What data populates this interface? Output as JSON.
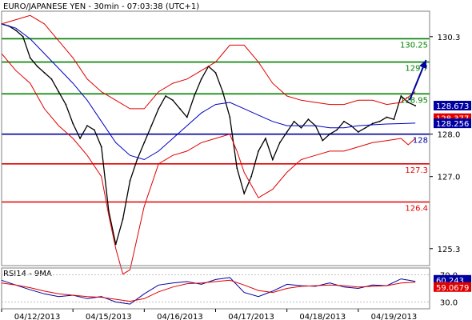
{
  "chart_data": [
    {
      "type": "line",
      "title": "EURO/JAPANESE YEN - 30min - 07:03:38 (UTC+1)",
      "y_ticks": [
        125.3,
        127.0,
        128.0,
        130.3
      ],
      "y_tick_labels": [
        "125.3",
        "127.0",
        "128.0",
        "130.3"
      ],
      "ylim": [
        124.9,
        130.9
      ],
      "x_ticks": [
        {
          "pos": 0.5,
          "label": "04/12/2013"
        },
        {
          "pos": 1.5,
          "label": "04/15/2013"
        },
        {
          "pos": 2.5,
          "label": "04/16/2013"
        },
        {
          "pos": 3.5,
          "label": "04/17/2013"
        },
        {
          "pos": 4.5,
          "label": "04/18/2013"
        },
        {
          "pos": 5.5,
          "label": "04/19/2013"
        }
      ],
      "xlim": [
        0.0,
        6.0
      ],
      "horizontal_levels": [
        {
          "value": 130.25,
          "label": "130.25",
          "color": "#008000"
        },
        {
          "value": 129.7,
          "label": "129.7",
          "color": "#008000"
        },
        {
          "value": 128.95,
          "label": "128.95",
          "color": "#008000"
        },
        {
          "value": 128.0,
          "label": "128",
          "color": "#0000a0"
        },
        {
          "value": 127.3,
          "label": "127.3",
          "color": "#e00000"
        },
        {
          "value": 126.4,
          "label": "126.4",
          "color": "#e00000"
        }
      ],
      "price_labels": [
        {
          "value": 128.673,
          "label": "128.673",
          "bg": "#0000a0"
        },
        {
          "value": 128.377,
          "label": "128.377",
          "bg": "#e00000"
        },
        {
          "value": 128.256,
          "label": "128.256",
          "bg": "#0000a0"
        }
      ],
      "series": [
        {
          "kind": "price",
          "color": "#000000",
          "x": [
            0.0,
            0.1,
            0.2,
            0.3,
            0.4,
            0.5,
            0.6,
            0.7,
            0.8,
            0.9,
            1.0,
            1.1,
            1.2,
            1.3,
            1.4,
            1.5,
            1.6,
            1.7,
            1.8,
            1.9,
            2.0,
            2.1,
            2.2,
            2.3,
            2.4,
            2.5,
            2.6,
            2.7,
            2.8,
            2.9,
            3.0,
            3.1,
            3.2,
            3.3,
            3.4,
            3.5,
            3.6,
            3.7,
            3.8,
            3.9,
            4.0,
            4.1,
            4.2,
            4.3,
            4.4,
            4.5,
            4.6,
            4.7,
            4.8,
            4.9,
            5.0,
            5.1,
            5.2,
            5.3,
            5.4,
            5.5,
            5.6,
            5.7,
            5.8
          ],
          "y": [
            130.6,
            130.55,
            130.45,
            130.3,
            129.8,
            129.6,
            129.45,
            129.3,
            129.0,
            128.7,
            128.25,
            127.9,
            128.2,
            128.1,
            127.7,
            126.2,
            125.4,
            126.0,
            126.9,
            127.4,
            127.8,
            128.2,
            128.6,
            128.9,
            128.8,
            128.6,
            128.4,
            128.9,
            129.3,
            129.6,
            129.45,
            129.0,
            128.4,
            127.2,
            126.6,
            127.0,
            127.6,
            127.9,
            127.4,
            127.8,
            128.05,
            128.3,
            128.15,
            128.35,
            128.2,
            127.85,
            128.0,
            128.1,
            128.3,
            128.2,
            128.05,
            128.15,
            128.25,
            128.3,
            128.4,
            128.35,
            128.9,
            128.75,
            128.67
          ]
        },
        {
          "kind": "bollinger_upper",
          "color": "#e00000",
          "x": [
            0.0,
            0.2,
            0.4,
            0.6,
            0.8,
            1.0,
            1.2,
            1.4,
            1.6,
            1.8,
            2.0,
            2.2,
            2.4,
            2.6,
            2.8,
            3.0,
            3.1,
            3.2,
            3.4,
            3.6,
            3.8,
            4.0,
            4.2,
            4.4,
            4.6,
            4.8,
            5.0,
            5.2,
            5.4,
            5.6,
            5.8
          ],
          "y": [
            130.6,
            130.7,
            130.8,
            130.6,
            130.2,
            129.8,
            129.3,
            129.0,
            128.8,
            128.6,
            128.6,
            129.0,
            129.2,
            129.3,
            129.5,
            129.7,
            129.9,
            130.1,
            130.1,
            129.7,
            129.2,
            128.9,
            128.8,
            128.75,
            128.7,
            128.7,
            128.8,
            128.8,
            128.7,
            128.75,
            129.0
          ]
        },
        {
          "kind": "bollinger_lower",
          "color": "#e00000",
          "x": [
            0.0,
            0.2,
            0.4,
            0.6,
            0.8,
            1.0,
            1.2,
            1.4,
            1.5,
            1.6,
            1.7,
            1.8,
            2.0,
            2.2,
            2.4,
            2.6,
            2.8,
            3.0,
            3.2,
            3.3,
            3.4,
            3.6,
            3.8,
            4.0,
            4.2,
            4.4,
            4.6,
            4.8,
            5.0,
            5.2,
            5.4,
            5.6,
            5.7,
            5.8
          ],
          "y": [
            129.9,
            129.5,
            129.2,
            128.6,
            128.2,
            127.9,
            127.5,
            127.0,
            126.1,
            125.3,
            124.7,
            124.8,
            126.3,
            127.3,
            127.5,
            127.6,
            127.8,
            127.9,
            128.0,
            127.6,
            127.1,
            126.5,
            126.7,
            127.1,
            127.4,
            127.5,
            127.6,
            127.6,
            127.7,
            127.8,
            127.85,
            127.9,
            127.75,
            127.9
          ]
        },
        {
          "kind": "moving_average",
          "color": "#0000c0",
          "x": [
            0.0,
            0.2,
            0.4,
            0.6,
            0.8,
            1.0,
            1.2,
            1.4,
            1.6,
            1.8,
            2.0,
            2.2,
            2.4,
            2.6,
            2.8,
            3.0,
            3.2,
            3.4,
            3.6,
            3.8,
            4.0,
            4.2,
            4.4,
            4.6,
            4.8,
            5.0,
            5.2,
            5.4,
            5.6,
            5.8
          ],
          "y": [
            130.6,
            130.5,
            130.25,
            129.9,
            129.55,
            129.2,
            128.8,
            128.3,
            127.8,
            127.5,
            127.4,
            127.6,
            127.9,
            128.2,
            128.5,
            128.7,
            128.75,
            128.6,
            128.45,
            128.3,
            128.2,
            128.2,
            128.2,
            128.15,
            128.15,
            128.2,
            128.22,
            128.24,
            128.25,
            128.26
          ]
        }
      ],
      "annotations": [
        {
          "kind": "arrow",
          "from": [
            5.72,
            128.8
          ],
          "to": [
            5.95,
            129.75
          ],
          "color": "#0000a0"
        }
      ]
    },
    {
      "type": "line",
      "title": "RSI14 - 9MA",
      "y_ticks": [
        30.0,
        70.0
      ],
      "y_tick_labels": [
        "30.0",
        "70.0"
      ],
      "ylim": [
        20.0,
        80.0
      ],
      "xlim": [
        0.0,
        6.0
      ],
      "value_labels": [
        {
          "value": 60.243,
          "label": "60.243",
          "bg": "#0000a0"
        },
        {
          "value": 59.0679,
          "label": "59.0679",
          "bg": "#e00000"
        }
      ],
      "series": [
        {
          "kind": "rsi",
          "color": "#0000a0",
          "x": [
            0.0,
            0.2,
            0.4,
            0.6,
            0.8,
            1.0,
            1.2,
            1.4,
            1.6,
            1.8,
            2.0,
            2.2,
            2.4,
            2.6,
            2.8,
            3.0,
            3.2,
            3.4,
            3.6,
            3.8,
            4.0,
            4.2,
            4.4,
            4.6,
            4.8,
            5.0,
            5.2,
            5.4,
            5.6,
            5.8
          ],
          "y": [
            62,
            55,
            48,
            42,
            38,
            40,
            35,
            38,
            30,
            27,
            42,
            55,
            58,
            60,
            56,
            63,
            66,
            44,
            38,
            46,
            56,
            54,
            53,
            58,
            52,
            50,
            55,
            54,
            64,
            60.24
          ]
        },
        {
          "kind": "rsi_ma",
          "color": "#e00000",
          "x": [
            0.0,
            0.2,
            0.4,
            0.6,
            0.8,
            1.0,
            1.2,
            1.4,
            1.6,
            1.8,
            2.0,
            2.2,
            2.4,
            2.6,
            2.8,
            3.0,
            3.2,
            3.4,
            3.6,
            3.8,
            4.0,
            4.2,
            4.4,
            4.6,
            4.8,
            5.0,
            5.2,
            5.4,
            5.6,
            5.8
          ],
          "y": [
            58,
            55,
            51,
            46,
            42,
            40,
            38,
            37,
            34,
            31,
            35,
            45,
            52,
            57,
            58,
            60,
            62,
            55,
            47,
            44,
            50,
            53,
            54,
            55,
            54,
            52,
            53,
            54,
            58,
            59.07
          ]
        }
      ]
    }
  ]
}
